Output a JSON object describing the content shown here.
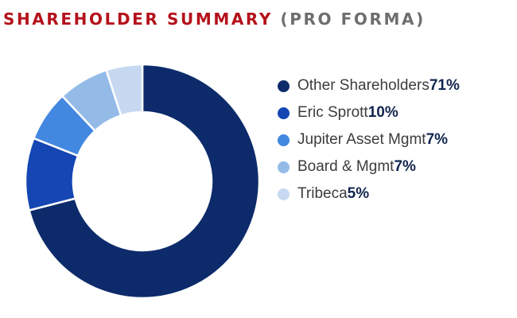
{
  "header": {
    "title": "SHAREHOLDER SUMMARY",
    "subtitle": "(PRO FORMA)"
  },
  "colors": {
    "title": "#b5121b",
    "subtitle": "#6e6e6e",
    "value_text": "#12254f"
  },
  "chart_data": {
    "type": "pie",
    "style": "donut",
    "title": "SHAREHOLDER SUMMARY (PRO FORMA)",
    "legend_position": "right",
    "unit": "%",
    "categories": [
      "Other Shareholders",
      "Eric Sprott",
      "Jupiter Asset Mgmt",
      "Board & Mgmt",
      "Tribeca"
    ],
    "values": [
      71,
      10,
      7,
      7,
      5
    ],
    "labels": [
      "71%",
      "10%",
      "7%",
      "7%",
      "5%"
    ],
    "colors": [
      "#0d2b6b",
      "#1546b3",
      "#4287e0",
      "#94bbe8",
      "#c7d9f1"
    ]
  }
}
